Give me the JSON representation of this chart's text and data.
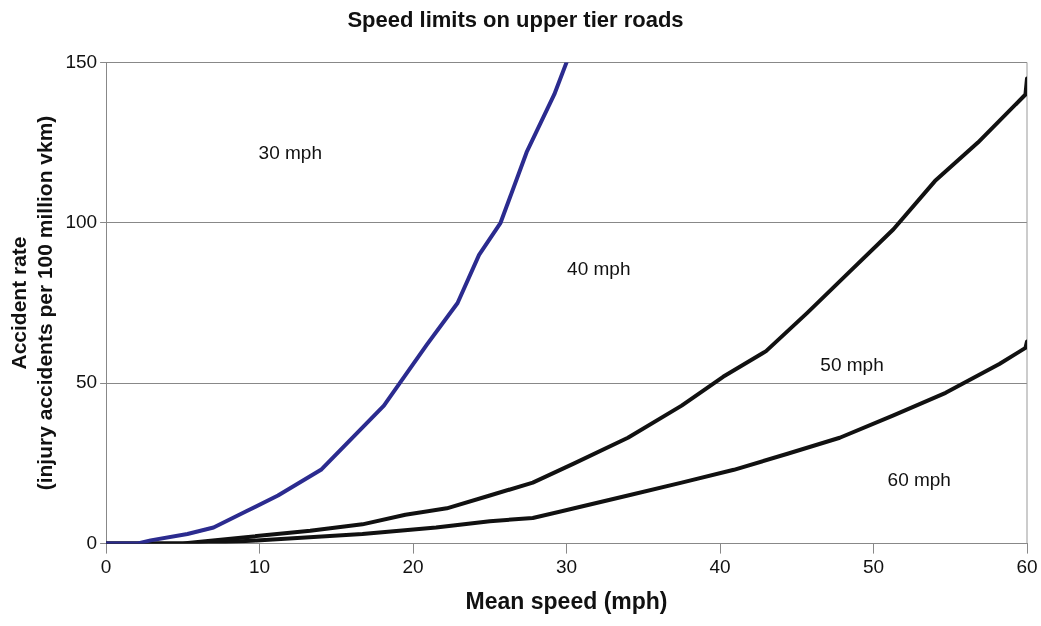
{
  "chart_data": {
    "type": "line",
    "title": "Speed limits on upper tier roads",
    "xlabel": "Mean speed (mph)",
    "ylabel": "Accident rate (injury accidents per 100 million vkm)",
    "xlim": [
      0,
      60
    ],
    "xticks": [
      0,
      10,
      20,
      30,
      40,
      50,
      60
    ],
    "ylim": [
      0,
      150
    ],
    "yticks": [
      0,
      50,
      100,
      150
    ],
    "grid": "y",
    "legend": false,
    "marker": "none",
    "line_style": "solid",
    "series": [
      {
        "color": "#2b2b8f",
        "x": [
          0,
          2,
          2.9,
          5.3,
          7,
          9.1,
          11.2,
          14,
          18.1,
          20.9,
          22.9,
          24.3,
          25.7,
          27.4,
          29.2,
          30
        ],
        "values": [
          0,
          0,
          1,
          3,
          5,
          10,
          15,
          23,
          43,
          62,
          75,
          90,
          100,
          122,
          140,
          150
        ]
      },
      {
        "color": "#111111",
        "x": [
          0,
          5,
          9.1,
          13.3,
          16.7,
          19.5,
          22.2,
          25,
          27.8,
          30.5,
          34,
          37.5,
          40.2,
          43,
          45.7,
          48.5,
          51.3,
          54,
          56.8,
          59.9,
          60
        ],
        "values": [
          0,
          0,
          2,
          4,
          6,
          9,
          11,
          15,
          19,
          25,
          33,
          43,
          52,
          60,
          72,
          85,
          98,
          113,
          125,
          140,
          145
        ]
      },
      {
        "color": "#111111",
        "x": [
          0,
          5.7,
          9.8,
          16.7,
          21.5,
          25,
          27.8,
          30.5,
          34,
          37.5,
          40.9,
          44.4,
          47.8,
          51.3,
          54.7,
          58.2,
          59.9,
          60
        ],
        "values": [
          0,
          0,
          1,
          3,
          5,
          7,
          8,
          11,
          15,
          19,
          23,
          28,
          33,
          40,
          47,
          56,
          61,
          63
        ]
      }
    ],
    "annotations": [
      "30 mph",
      "40 mph",
      "50 mph",
      "60 mph"
    ]
  }
}
